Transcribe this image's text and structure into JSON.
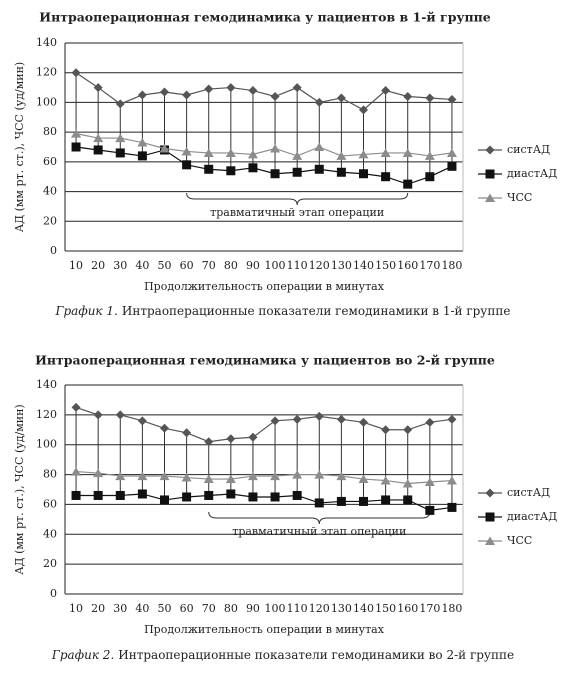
{
  "chart_data": [
    {
      "type": "line",
      "title": "Интраоперационная гемодинамика у пациентов в 1-й группе",
      "y_label": "АД (мм рт. ст.), ЧСС (уд/мин)",
      "x_label": "Продолжительность операции в минутах",
      "caption_label": "График 1.",
      "caption": "Интраоперационные показатели гемодинамики в 1-й группе",
      "annotation": "травматичный этап операции",
      "categories": [
        "10",
        "20",
        "30",
        "40",
        "50",
        "60",
        "70",
        "80",
        "90",
        "100",
        "110",
        "120",
        "130",
        "140",
        "150",
        "160",
        "170",
        "180"
      ],
      "series": [
        {
          "name": "систАД",
          "color": "#555555",
          "marker": "diamond",
          "values": [
            120,
            110,
            99,
            105,
            107,
            105,
            109,
            110,
            108,
            104,
            110,
            100,
            103,
            95,
            108,
            104,
            103,
            102
          ]
        },
        {
          "name": "диастАД",
          "color": "#111111",
          "marker": "square",
          "values": [
            70,
            68,
            66,
            64,
            68,
            58,
            55,
            54,
            56,
            52,
            53,
            55,
            53,
            52,
            50,
            45,
            50,
            57
          ]
        },
        {
          "name": "ЧСС",
          "color": "#8c8c8c",
          "marker": "triangle",
          "values": [
            79,
            76,
            76,
            73,
            69,
            67,
            66,
            66,
            65,
            69,
            64,
            70,
            64,
            65,
            66,
            66,
            64,
            66
          ]
        }
      ],
      "ylim": [
        0,
        140
      ],
      "yticks": [
        0,
        20,
        40,
        60,
        80,
        100,
        120,
        140
      ],
      "grid": true
    },
    {
      "type": "line",
      "title": "Интраоперационная гемодинамика у пациентов во 2-й группе",
      "y_label": "АД (мм рт. ст.), ЧСС (уд/мин)",
      "x_label": "Продолжительность операции в минутах",
      "caption_label": "График 2.",
      "caption": "Интраоперационные показатели гемодинамики во 2-й группе",
      "annotation": "травматичный этап операции",
      "categories": [
        "10",
        "20",
        "30",
        "40",
        "50",
        "60",
        "70",
        "80",
        "90",
        "100",
        "110",
        "120",
        "130",
        "140",
        "150",
        "160",
        "170",
        "180"
      ],
      "series": [
        {
          "name": "систАД",
          "color": "#555555",
          "marker": "diamond",
          "values": [
            125,
            120,
            120,
            116,
            111,
            108,
            102,
            104,
            105,
            116,
            117,
            119,
            117,
            115,
            110,
            110,
            115,
            117
          ]
        },
        {
          "name": "диастАД",
          "color": "#111111",
          "marker": "square",
          "values": [
            66,
            66,
            66,
            67,
            63,
            65,
            66,
            67,
            65,
            65,
            66,
            61,
            62,
            62,
            63,
            63,
            56,
            58
          ]
        },
        {
          "name": "ЧСС",
          "color": "#8c8c8c",
          "marker": "triangle",
          "values": [
            82,
            81,
            79,
            79,
            79,
            78,
            77,
            77,
            79,
            79,
            80,
            80,
            79,
            77,
            76,
            74,
            75,
            76
          ]
        }
      ],
      "ylim": [
        0,
        140
      ],
      "yticks": [
        0,
        20,
        40,
        60,
        80,
        100,
        120,
        140
      ],
      "grid": true
    }
  ]
}
